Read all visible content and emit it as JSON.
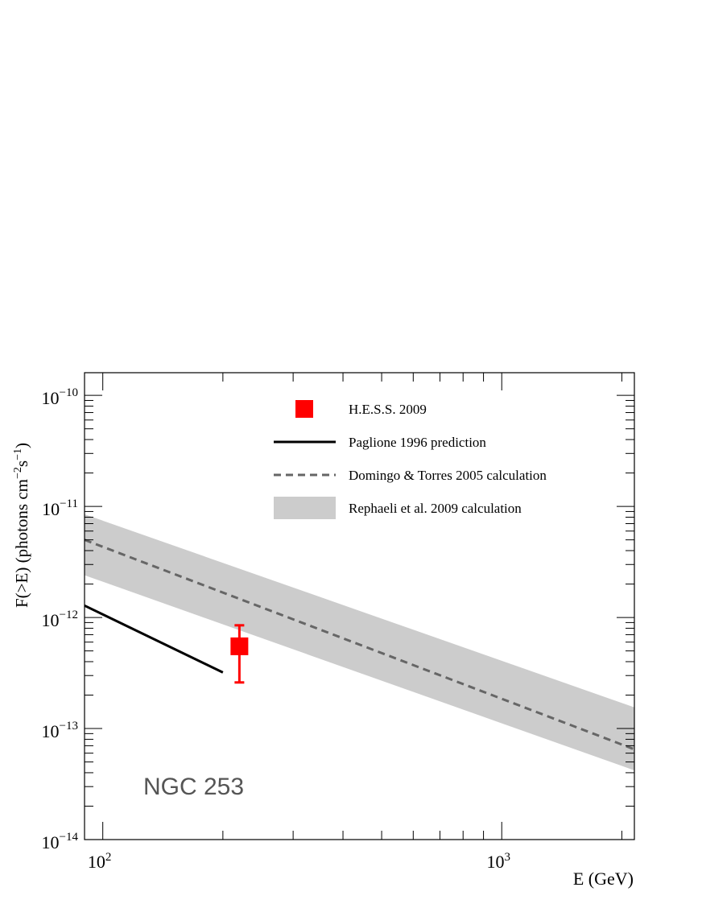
{
  "chart_data": {
    "type": "line",
    "x_scale": "log",
    "y_scale": "log",
    "xlim": [
      90,
      2150
    ],
    "ylim": [
      1e-14,
      1.6e-10
    ],
    "xlabel": "E (GeV)",
    "ylabel": "F(>E) (photons cm",
    "ylabel_sup1": "−2",
    "ylabel_mid": "s",
    "ylabel_sup2": "−1",
    "ylabel_end": ")",
    "x_ticks": [
      {
        "base": "10",
        "exp": "2",
        "value": 100
      },
      {
        "base": "10",
        "exp": "3",
        "value": 1000
      }
    ],
    "y_ticks": [
      {
        "base": "10",
        "exp": "−10",
        "value": 1e-10
      },
      {
        "base": "10",
        "exp": "−11",
        "value": 1e-11
      },
      {
        "base": "10",
        "exp": "−12",
        "value": 1e-12
      },
      {
        "base": "10",
        "exp": "−13",
        "value": 1e-13
      },
      {
        "base": "10",
        "exp": "−14",
        "value": 1e-14
      }
    ],
    "annotation": "NGC 253",
    "annotation_color": "#555555",
    "legend_position": "top-right",
    "legend": [
      {
        "label": "H.E.S.S. 2009",
        "kind": "marker"
      },
      {
        "label": "Paglione 1996 prediction",
        "kind": "solid"
      },
      {
        "label": "Domingo & Torres 2005 calculation",
        "kind": "dashed"
      },
      {
        "label": "Rephaeli et al. 2009 calculation",
        "kind": "band"
      }
    ],
    "series": [
      {
        "name": "H.E.S.S. 2009",
        "kind": "point",
        "color": "#ff0000",
        "x": [
          220
        ],
        "y": [
          5.5e-13
        ],
        "y_low": [
          2.6e-13
        ],
        "y_high": [
          8.5e-13
        ]
      },
      {
        "name": "Paglione 1996 prediction",
        "kind": "line",
        "color": "#000000",
        "x": [
          90,
          200
        ],
        "y": [
          1.28e-12,
          3.2e-13
        ]
      },
      {
        "name": "Domingo & Torres 2005 calculation",
        "kind": "dashed",
        "color": "#666666",
        "x": [
          90,
          2150
        ],
        "y": [
          5e-12,
          6.5e-14
        ]
      },
      {
        "name": "Rephaeli et al. 2009 calculation",
        "kind": "band",
        "color": "#cccccc",
        "x": [
          90,
          2150
        ],
        "y_low": [
          2.4e-12,
          4.2e-14
        ],
        "y_high": [
          8.5e-12,
          1.55e-13
        ]
      }
    ]
  }
}
